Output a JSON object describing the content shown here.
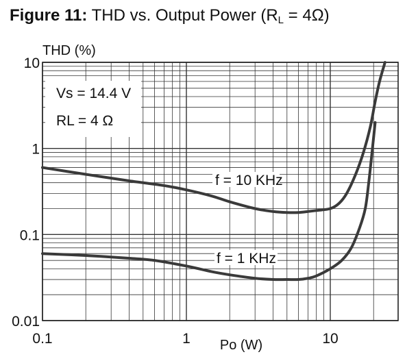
{
  "title": {
    "prefix": "Figure 11:",
    "main": "THD vs. Output Power (R",
    "sub": "L",
    "suffix": " = 4Ω)"
  },
  "chart_data": {
    "type": "line",
    "title": "Figure 11: THD vs. Output Power (RL = 4Ω)",
    "xlabel": "Po (W)",
    "ylabel": "THD (%)",
    "x_scale": "log",
    "y_scale": "log",
    "xlim": [
      0.1,
      25
    ],
    "ylim": [
      0.01,
      10
    ],
    "grid": true,
    "x_ticks": [
      {
        "value": 0.1,
        "label": "0.1"
      },
      {
        "value": 1,
        "label": "1"
      },
      {
        "value": 10,
        "label": "10"
      }
    ],
    "y_ticks": [
      {
        "value": 10,
        "label": "10"
      },
      {
        "value": 1,
        "label": "1"
      },
      {
        "value": 0.1,
        "label": "0.1"
      },
      {
        "value": 0.01,
        "label": "0.01"
      }
    ],
    "annotations": [
      "Vs = 14.4 V",
      "RL = 4 Ω"
    ],
    "series": [
      {
        "name": "f = 10 KHz",
        "x": [
          0.1,
          0.2,
          0.4,
          0.7,
          1.0,
          1.5,
          2.0,
          3.0,
          4.0,
          5.0,
          6.0,
          7.0,
          8.0,
          10.0,
          11.5,
          13.0,
          15.0,
          17.0,
          19.0,
          20.5,
          22.0,
          24.0
        ],
        "y": [
          0.6,
          0.5,
          0.42,
          0.37,
          0.33,
          0.28,
          0.24,
          0.2,
          0.185,
          0.18,
          0.18,
          0.185,
          0.19,
          0.2,
          0.23,
          0.3,
          0.5,
          0.9,
          1.8,
          3.5,
          6.0,
          10.0
        ]
      },
      {
        "name": "f = 1 KHz",
        "x": [
          0.1,
          0.2,
          0.4,
          0.6,
          1.0,
          1.5,
          2.0,
          3.0,
          4.0,
          5.0,
          6.0,
          7.0,
          8.0,
          10.0,
          12.0,
          14.0,
          16.0,
          17.5,
          18.5,
          19.5,
          20.5
        ],
        "y": [
          0.06,
          0.057,
          0.053,
          0.05,
          0.043,
          0.037,
          0.034,
          0.031,
          0.03,
          0.03,
          0.03,
          0.031,
          0.033,
          0.04,
          0.05,
          0.07,
          0.12,
          0.2,
          0.4,
          0.9,
          2.0
        ]
      }
    ]
  }
}
